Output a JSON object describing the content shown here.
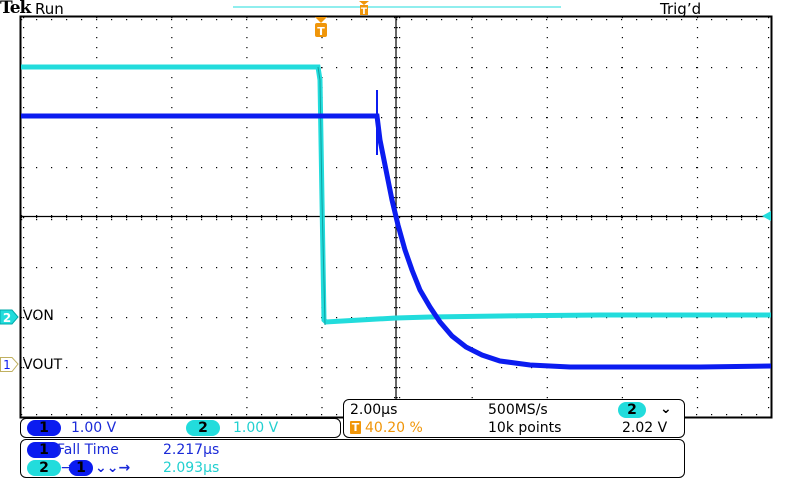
{
  "header": {
    "brand": "Tek",
    "acq_state": "Run",
    "trigger_status": "Trig’d"
  },
  "colors": {
    "ch1": "#0b1cf0",
    "ch2": "#22dcdc",
    "trigger": "#f0960a",
    "grid": "#000000"
  },
  "channels": [
    {
      "id": "1",
      "label": "VOUT",
      "scale": "1.00 V"
    },
    {
      "id": "2",
      "label": "VON",
      "scale": "1.00 V"
    }
  ],
  "scale_bar": {
    "ch1_num": "1",
    "ch1_scale": "1.00 V",
    "ch2_num": "2",
    "ch2_scale": "1.00 V"
  },
  "timebase": {
    "time_per_div": "2.00µs",
    "sample_rate": "500MS/s",
    "record_length": "10k points",
    "trigger_position_icon": "T",
    "trigger_position": "40.20 %",
    "trigger_source": "2",
    "trigger_slope_icon": "falling-edge",
    "trigger_level": "2.02 V"
  },
  "measurements": [
    {
      "source": "1",
      "name": "Fall Time",
      "value": "2.217µs"
    },
    {
      "source": "2",
      "target": "1",
      "name": "Delay fall-fall",
      "value": "2.093µs"
    }
  ],
  "glyphs": {
    "arrow": "→",
    "fall_edges": "⌄",
    "trig_marker": "T"
  }
}
